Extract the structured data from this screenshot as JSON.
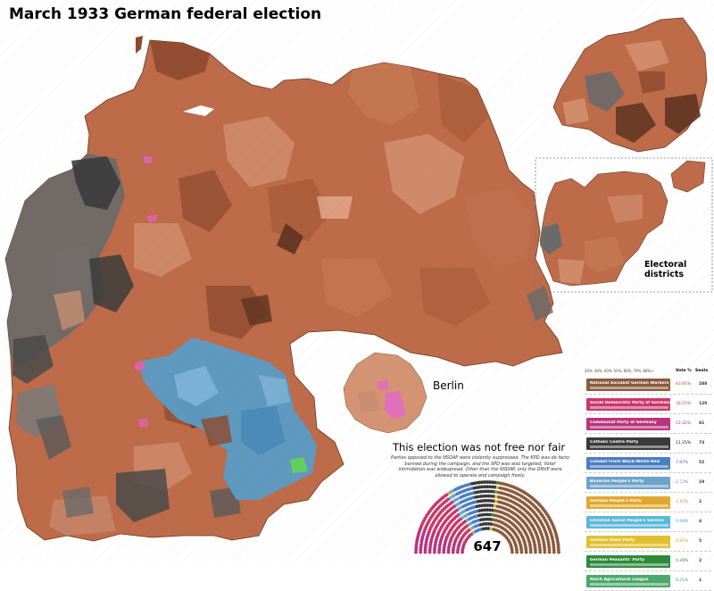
{
  "title": "March 1933 German federal election",
  "insets": {
    "berlin_label": "Berlin",
    "districts_label": "Electoral districts"
  },
  "notice": "This election was not free nor fair",
  "note": "Parties opposed to the NSDAP were violently suppressed. The KPD was de facto banned during the campaign, and the SPD was also targeted. Voter intimidation was widespread. Other than the NSDAP, only the DNVP were allowed to operate and campaign freely.",
  "hemicycle": {
    "total_seats": "647"
  },
  "legend": {
    "scale_ticks": [
      "20%",
      "30%",
      "40%",
      "50%",
      "60%",
      "70%",
      "80%+"
    ],
    "vote_header": "Vote %",
    "seats_header": "Seats",
    "parties": [
      {
        "name": "National Socialist German Workers",
        "vote": "43.91%",
        "seats": "288",
        "color": "#8b5a3c",
        "text_color": "#b0402a"
      },
      {
        "name": "Social Democratic Party of Germany",
        "vote": "18.25%",
        "seats": "120",
        "color": "#c8386a",
        "text_color": "#c8386a"
      },
      {
        "name": "Communist Party of Germany",
        "vote": "12.32%",
        "seats": "81",
        "color": "#b8347e",
        "text_color": "#b8347e"
      },
      {
        "name": "Catholic Centre Party",
        "vote": "11.25%",
        "seats": "73",
        "color": "#3a3a3a",
        "text_color": "#111111"
      },
      {
        "name": "Combat Front Black-White-Red",
        "vote": "7.97%",
        "seats": "52",
        "color": "#4a7ec0",
        "text_color": "#3a6eb0"
      },
      {
        "name": "Bavarian People's Party",
        "vote": "2.73%",
        "seats": "19",
        "color": "#6ea2c8",
        "text_color": "#5a8fb8"
      },
      {
        "name": "German People's Party",
        "vote": "1.10%",
        "seats": "2",
        "color": "#e0a830",
        "text_color": "#c89020"
      },
      {
        "name": "Christian Social People's Service",
        "vote": "0.98%",
        "seats": "4",
        "color": "#5ab8d8",
        "text_color": "#3aa0c8"
      },
      {
        "name": "German State Party",
        "vote": "0.85%",
        "seats": "5",
        "color": "#e0c030",
        "text_color": "#c8a820"
      },
      {
        "name": "German Peasants' Party",
        "vote": "0.29%",
        "seats": "2",
        "color": "#2e8a3a",
        "text_color": "#2e8a3a"
      },
      {
        "name": "Reich Agricultural League",
        "vote": "0.21%",
        "seats": "1",
        "color": "#4aa86a",
        "text_color": "#3a9858"
      }
    ]
  },
  "colors": {
    "nsdap_light": "#d49474",
    "nsdap_mid": "#bd6b49",
    "nsdap_dark": "#8e4a30",
    "nsdap_darkest": "#5e3420",
    "centre": "#6a6a6a",
    "centre_dark": "#3c3c3c",
    "bvp": "#5b9cc6",
    "spd": "#e060a8",
    "green": "#5fd060"
  }
}
